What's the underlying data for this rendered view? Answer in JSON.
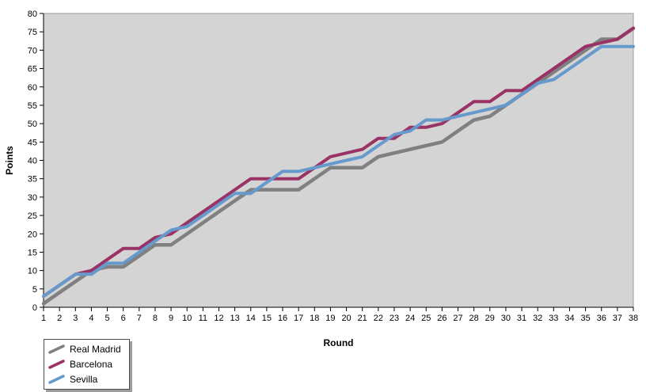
{
  "chart_data": {
    "type": "line",
    "title": "",
    "xlabel": "Round",
    "ylabel": "Points",
    "xlim": [
      1,
      38
    ],
    "xtick_step": 1,
    "ylim": [
      0,
      80
    ],
    "ytick_step": 5,
    "grid": false,
    "plot_bg": "#d4d4d4",
    "plot_border": "#9a9a9a",
    "axis_color": "#000000",
    "legend_position": "bottom-left-outside",
    "x": [
      1,
      2,
      3,
      4,
      5,
      6,
      7,
      8,
      9,
      10,
      11,
      12,
      13,
      14,
      15,
      16,
      17,
      18,
      19,
      20,
      21,
      22,
      23,
      24,
      25,
      26,
      27,
      28,
      29,
      30,
      31,
      32,
      33,
      34,
      35,
      36,
      37,
      38
    ],
    "series": [
      {
        "name": "Real Madrid",
        "color": "#808080",
        "stroke_width": 4.5,
        "values": [
          1,
          4,
          7,
          10,
          11,
          11,
          14,
          17,
          17,
          20,
          23,
          26,
          29,
          32,
          32,
          32,
          32,
          35,
          38,
          38,
          38,
          41,
          42,
          43,
          44,
          45,
          48,
          51,
          52,
          55,
          58,
          61,
          64,
          67,
          70,
          73,
          73,
          76
        ]
      },
      {
        "name": "Barcelona",
        "color": "#993366",
        "stroke_width": 4,
        "values": [
          3,
          6,
          9,
          10,
          13,
          16,
          16,
          19,
          20,
          23,
          26,
          29,
          32,
          35,
          35,
          35,
          35,
          38,
          41,
          42,
          43,
          46,
          46,
          49,
          49,
          50,
          53,
          56,
          56,
          59,
          59,
          62,
          65,
          68,
          71,
          72,
          73,
          76
        ]
      },
      {
        "name": "Sevilla",
        "color": "#6699cc",
        "stroke_width": 4,
        "values": [
          3,
          6,
          9,
          9,
          12,
          12,
          15,
          18,
          21,
          22,
          25,
          28,
          31,
          31,
          34,
          37,
          37,
          38,
          39,
          40,
          41,
          44,
          47,
          48,
          51,
          51,
          52,
          53,
          54,
          55,
          58,
          61,
          62,
          65,
          68,
          71,
          71,
          71
        ]
      }
    ]
  }
}
